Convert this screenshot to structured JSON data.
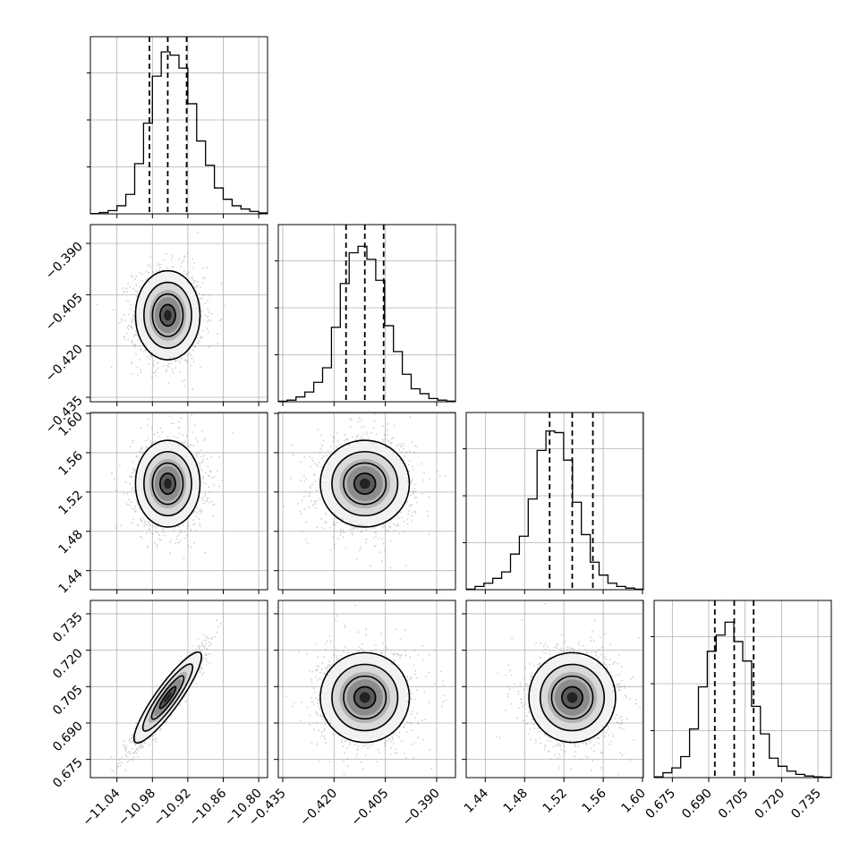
{
  "chart_data": {
    "type": "corner",
    "parameters": [
      {
        "ticks": [
          "−11.04",
          "−10.98",
          "−10.92",
          "−10.86",
          "−10.80"
        ],
        "tick_values": [
          -11.04,
          -10.98,
          -10.92,
          -10.86,
          -10.8
        ],
        "range": [
          -11.085,
          -10.785
        ]
      },
      {
        "ticks": [
          "−0.435",
          "−0.420",
          "−0.405",
          "−0.390"
        ],
        "tick_values": [
          -0.435,
          -0.42,
          -0.405,
          -0.39
        ],
        "range": [
          -0.4363,
          -0.3845
        ]
      },
      {
        "ticks": [
          "1.44",
          "1.48",
          "1.52",
          "1.56",
          "1.60"
        ],
        "tick_values": [
          1.44,
          1.48,
          1.52,
          1.56,
          1.6
        ],
        "range": [
          1.4206,
          1.6009
        ]
      },
      {
        "ticks": [
          "0.675",
          "0.690",
          "0.705",
          "0.720",
          "0.735"
        ],
        "tick_values": [
          0.675,
          0.69,
          0.705,
          0.72,
          0.735
        ],
        "range": [
          0.6675,
          0.7405
        ]
      }
    ],
    "quantiles": [
      [
        -10.985,
        -10.954,
        -10.922
      ],
      [
        -0.4165,
        -0.411,
        -0.4055
      ],
      [
        1.5055,
        1.5285,
        1.5495
      ],
      [
        0.6925,
        0.7005,
        0.7085
      ]
    ],
    "histograms": [
      [
        0.002,
        0.008,
        0.02,
        0.05,
        0.12,
        0.31,
        0.56,
        0.85,
        1.0,
        0.98,
        0.9,
        0.68,
        0.45,
        0.3,
        0.16,
        0.09,
        0.05,
        0.03,
        0.015,
        0.006
      ],
      [
        0.003,
        0.01,
        0.03,
        0.06,
        0.12,
        0.21,
        0.46,
        0.73,
        0.92,
        0.96,
        0.88,
        0.75,
        0.47,
        0.31,
        0.17,
        0.08,
        0.05,
        0.02,
        0.01,
        0.004
      ],
      [
        0.003,
        0.02,
        0.04,
        0.07,
        0.11,
        0.22,
        0.33,
        0.56,
        0.86,
        0.98,
        0.97,
        0.8,
        0.54,
        0.34,
        0.17,
        0.09,
        0.04,
        0.02,
        0.01,
        0.003
      ],
      [
        0.005,
        0.03,
        0.06,
        0.13,
        0.3,
        0.56,
        0.78,
        0.88,
        0.96,
        0.84,
        0.72,
        0.44,
        0.27,
        0.12,
        0.07,
        0.04,
        0.02,
        0.01,
        0.005,
        0.002
      ]
    ],
    "correlations": [
      [
        1,
        0,
        0,
        0.95
      ],
      [
        0,
        1,
        0,
        0
      ],
      [
        0,
        0,
        1,
        0
      ],
      [
        0.95,
        0,
        0,
        1
      ]
    ],
    "widths": [
      0.026,
      0.0062,
      0.021,
      0.0088
    ],
    "grid": true
  }
}
